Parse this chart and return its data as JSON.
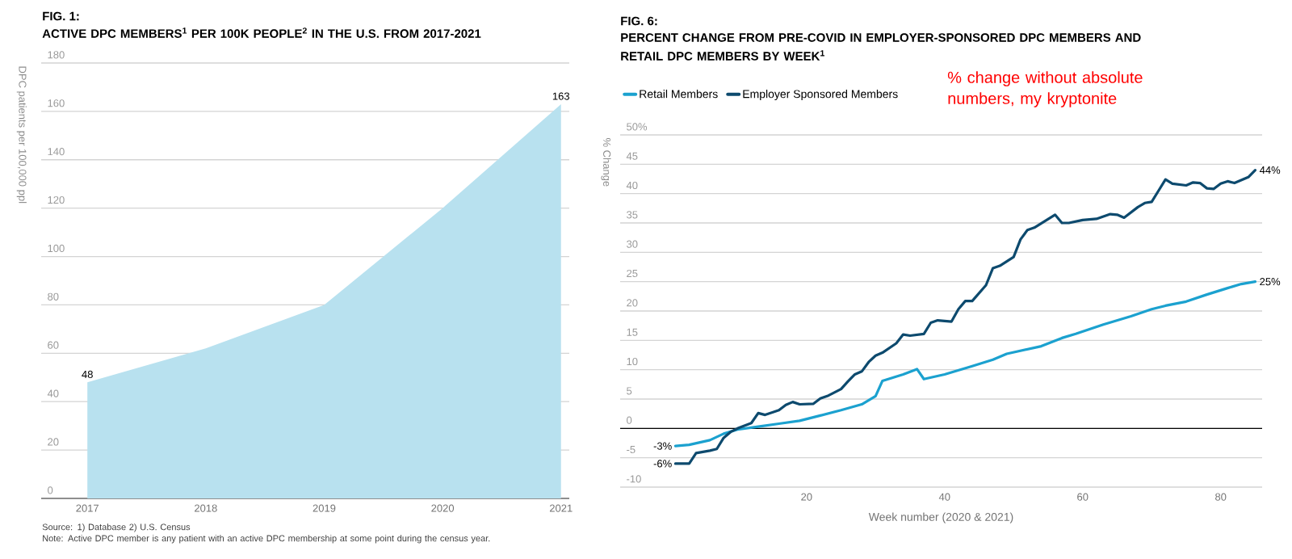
{
  "chart_data": [
    {
      "type": "area",
      "title": "FIG. 1:",
      "subtitle": "ACTIVE DPC MEMBERS$^{1}$ PER 100K PEOPLE$^{2}$ IN THE U.S. FROM 2017-2021",
      "ylabel": "DPC patients per 100,000 ppl",
      "categories": [
        "2017",
        "2018",
        "2019",
        "2020",
        "2021"
      ],
      "values": [
        48,
        62,
        80,
        120,
        163
      ],
      "value_labels": [
        "48",
        null,
        null,
        null,
        "163"
      ],
      "color": "#b8e1ef",
      "ylim": [
        0,
        180
      ],
      "yticks": [
        0,
        20,
        40,
        60,
        80,
        100,
        120,
        140,
        160,
        180
      ],
      "grid": "y",
      "annotations": [
        "Source: 1) Database 2) U.S. Census",
        "Note: Active DPC member is any patient with an active DPC membership at some point during the census year."
      ]
    },
    {
      "type": "line",
      "title": "FIG. 6:",
      "subtitle": "PERCENT CHANGE FROM PRE-COVID IN EMPLOYER-SPONSORED DPC MEMBERS AND RETAIL DPC MEMBERS BY WEEK$^{1}$",
      "xlabel": "Week number (2020 & 2021)",
      "ylabel": "% Change",
      "series": [
        {
          "name": "Retail Members",
          "color": "#1ba1cf",
          "x": [
            1,
            3,
            6,
            8,
            10,
            13,
            16,
            19,
            22,
            25,
            28,
            30,
            31,
            34,
            36,
            37,
            40,
            44,
            47,
            49,
            54,
            57,
            59,
            63,
            67,
            70,
            72,
            75,
            78,
            81,
            83,
            85
          ],
          "values": [
            -3,
            -2.8,
            -2.0,
            -0.9,
            -0.2,
            0.3,
            0.8,
            1.3,
            2.2,
            3.1,
            4.1,
            5.5,
            8.1,
            9.2,
            10.1,
            8.4,
            9.2,
            10.6,
            11.7,
            12.7,
            14.0,
            15.4,
            16.1,
            17.7,
            19.1,
            20.3,
            20.9,
            21.6,
            22.8,
            23.9,
            24.6,
            25
          ],
          "value_labels": [
            "-3%",
            null,
            null,
            null,
            null,
            null,
            null,
            null,
            null,
            null,
            null,
            null,
            null,
            null,
            null,
            null,
            null,
            null,
            null,
            null,
            null,
            null,
            null,
            null,
            null,
            null,
            null,
            null,
            null,
            null,
            null,
            "25%"
          ]
        },
        {
          "name": "Employer Sponsored Members",
          "color": "#0d4a6e",
          "x": [
            1,
            3,
            4,
            6,
            7,
            8,
            9,
            10,
            12,
            13,
            14,
            16,
            17,
            18,
            19,
            21,
            22,
            23,
            25,
            26,
            27,
            28,
            29,
            30,
            31,
            33,
            34,
            35,
            37,
            38,
            39,
            41,
            42,
            43,
            44,
            46,
            47,
            48,
            50,
            51,
            52,
            53,
            56,
            57,
            58,
            60,
            62,
            64,
            65,
            66,
            68,
            69,
            70,
            71,
            72,
            73,
            75,
            76,
            77,
            78,
            79,
            80,
            81,
            82,
            84,
            85
          ],
          "values": [
            -6,
            -6,
            -4.2,
            -3.8,
            -3.5,
            -1.6,
            -0.6,
            0,
            0.9,
            2.6,
            2.3,
            3.1,
            4.0,
            4.5,
            4.1,
            4.2,
            5.1,
            5.5,
            6.7,
            8.0,
            9.2,
            9.7,
            11.3,
            12.4,
            12.9,
            14.5,
            16.0,
            15.8,
            16.1,
            18.0,
            18.4,
            18.2,
            20.3,
            21.7,
            21.7,
            24.4,
            27.3,
            27.7,
            29.2,
            32.2,
            33.8,
            34.2,
            36.4,
            35.0,
            35.0,
            35.5,
            35.7,
            36.5,
            36.4,
            35.9,
            37.7,
            38.4,
            38.6,
            40.5,
            42.4,
            41.7,
            41.4,
            41.9,
            41.8,
            40.9,
            40.8,
            41.7,
            42.1,
            41.8,
            42.8,
            44
          ],
          "value_labels": [
            "-6%",
            null,
            null,
            null,
            null,
            null,
            null,
            null,
            null,
            null,
            null,
            null,
            null,
            null,
            null,
            null,
            null,
            null,
            null,
            null,
            null,
            null,
            null,
            null,
            null,
            null,
            null,
            null,
            null,
            null,
            null,
            null,
            null,
            null,
            null,
            null,
            null,
            null,
            null,
            null,
            null,
            null,
            null,
            null,
            null,
            null,
            null,
            null,
            null,
            null,
            null,
            null,
            null,
            null,
            null,
            null,
            null,
            null,
            null,
            null,
            null,
            null,
            null,
            null,
            null,
            "44%"
          ]
        }
      ],
      "xlim": [
        -7,
        86
      ],
      "xticks": [
        20,
        40,
        60,
        80
      ],
      "ylim": [
        -10,
        50
      ],
      "yticks": [
        -10,
        -5,
        0,
        5,
        10,
        15,
        20,
        25,
        30,
        35,
        40,
        45,
        {
          "value": 50,
          "label": "50%"
        }
      ],
      "grid": "y",
      "legend": "top left",
      "ref_lines": [
        {
          "axis": "y",
          "value": 0,
          "color": "#000000"
        }
      ],
      "annotations": [
        "% change without absolute numbers, my kryptonite"
      ]
    }
  ]
}
